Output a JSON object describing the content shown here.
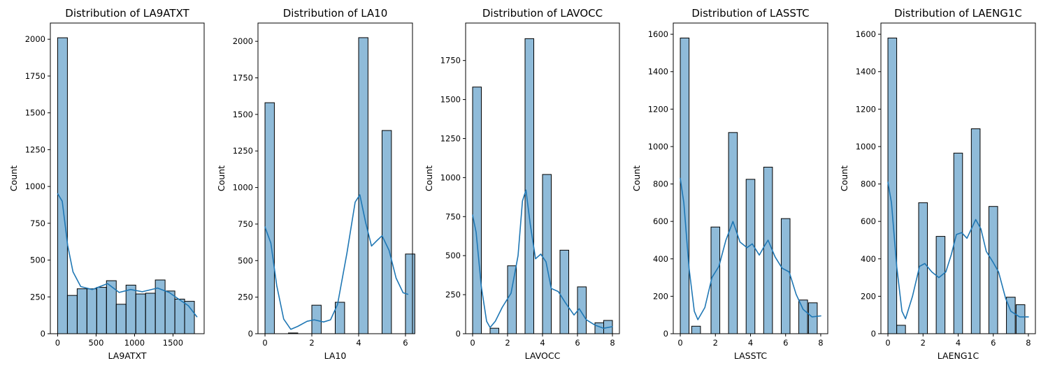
{
  "chart_data": [
    {
      "type": "bar",
      "title": "Distribution of LA9ATXT",
      "xlabel": "LA9ATXT",
      "ylabel": "Count",
      "xlim": [
        -95,
        1905
      ],
      "ylim": [
        0,
        2110
      ],
      "xticks": [
        0,
        500,
        1000,
        1500
      ],
      "yticks": [
        0,
        250,
        500,
        750,
        1000,
        1250,
        1500,
        1750,
        2000
      ],
      "bins": [
        {
          "x0": 0,
          "x1": 127,
          "count": 2010
        },
        {
          "x0": 127,
          "x1": 254,
          "count": 260
        },
        {
          "x0": 254,
          "x1": 381,
          "count": 305
        },
        {
          "x0": 381,
          "x1": 508,
          "count": 305
        },
        {
          "x0": 508,
          "x1": 635,
          "count": 315
        },
        {
          "x0": 635,
          "x1": 762,
          "count": 360
        },
        {
          "x0": 762,
          "x1": 889,
          "count": 200
        },
        {
          "x0": 889,
          "x1": 1016,
          "count": 330
        },
        {
          "x0": 1016,
          "x1": 1143,
          "count": 270
        },
        {
          "x0": 1143,
          "x1": 1270,
          "count": 275
        },
        {
          "x0": 1270,
          "x1": 1397,
          "count": 365
        },
        {
          "x0": 1397,
          "x1": 1524,
          "count": 290
        },
        {
          "x0": 1524,
          "x1": 1651,
          "count": 235
        },
        {
          "x0": 1651,
          "x1": 1778,
          "count": 220
        }
      ],
      "kde": [
        [
          0,
          950
        ],
        [
          60,
          900
        ],
        [
          130,
          600
        ],
        [
          200,
          420
        ],
        [
          300,
          320
        ],
        [
          450,
          300
        ],
        [
          650,
          340
        ],
        [
          800,
          280
        ],
        [
          950,
          300
        ],
        [
          1100,
          285
        ],
        [
          1300,
          310
        ],
        [
          1450,
          280
        ],
        [
          1600,
          225
        ],
        [
          1700,
          190
        ],
        [
          1810,
          115
        ]
      ]
    },
    {
      "type": "bar",
      "title": "Distribution of LA10",
      "xlabel": "LA10",
      "ylabel": "Count",
      "xlim": [
        -0.3,
        6.3
      ],
      "ylim": [
        0,
        2125
      ],
      "xticks": [
        0,
        2,
        4,
        6
      ],
      "yticks": [
        0,
        250,
        500,
        750,
        1000,
        1250,
        1500,
        1750,
        2000
      ],
      "bins": [
        {
          "x0": 0,
          "x1": 0.4,
          "count": 1580
        },
        {
          "x0": 1,
          "x1": 1.4,
          "count": 5
        },
        {
          "x0": 2,
          "x1": 2.4,
          "count": 195
        },
        {
          "x0": 3,
          "x1": 3.4,
          "count": 215
        },
        {
          "x0": 4,
          "x1": 4.4,
          "count": 2025
        },
        {
          "x0": 5,
          "x1": 5.4,
          "count": 1390
        },
        {
          "x0": 6,
          "x1": 6.4,
          "count": 545
        }
      ],
      "kde": [
        [
          0,
          730
        ],
        [
          0.25,
          620
        ],
        [
          0.5,
          330
        ],
        [
          0.8,
          100
        ],
        [
          1.1,
          30
        ],
        [
          1.4,
          50
        ],
        [
          1.8,
          85
        ],
        [
          2.1,
          95
        ],
        [
          2.5,
          80
        ],
        [
          2.8,
          95
        ],
        [
          3.1,
          200
        ],
        [
          3.5,
          550
        ],
        [
          3.85,
          900
        ],
        [
          4.05,
          950
        ],
        [
          4.3,
          760
        ],
        [
          4.55,
          600
        ],
        [
          4.8,
          640
        ],
        [
          5.0,
          670
        ],
        [
          5.3,
          570
        ],
        [
          5.6,
          380
        ],
        [
          5.9,
          280
        ],
        [
          6.1,
          270
        ]
      ]
    },
    {
      "type": "bar",
      "title": "Distribution of LAVOCC",
      "xlabel": "LAVOCC",
      "ylabel": "Count",
      "xlim": [
        -0.4,
        8.4
      ],
      "ylim": [
        0,
        1990
      ],
      "xticks": [
        0,
        2,
        4,
        6,
        8
      ],
      "yticks": [
        0,
        250,
        500,
        750,
        1000,
        1250,
        1500,
        1750
      ],
      "bins": [
        {
          "x0": 0,
          "x1": 0.5,
          "count": 1580
        },
        {
          "x0": 1,
          "x1": 1.5,
          "count": 35
        },
        {
          "x0": 2,
          "x1": 2.5,
          "count": 435
        },
        {
          "x0": 3,
          "x1": 3.5,
          "count": 1890
        },
        {
          "x0": 4,
          "x1": 4.5,
          "count": 1020
        },
        {
          "x0": 5,
          "x1": 5.5,
          "count": 535
        },
        {
          "x0": 6,
          "x1": 6.5,
          "count": 300
        },
        {
          "x0": 7,
          "x1": 7.5,
          "count": 70
        },
        {
          "x0": 7.5,
          "x1": 8,
          "count": 85
        }
      ],
      "kde": [
        [
          0,
          760
        ],
        [
          0.2,
          650
        ],
        [
          0.5,
          300
        ],
        [
          0.8,
          80
        ],
        [
          1.0,
          40
        ],
        [
          1.3,
          80
        ],
        [
          1.7,
          170
        ],
        [
          2.2,
          260
        ],
        [
          2.6,
          500
        ],
        [
          2.85,
          850
        ],
        [
          3.05,
          920
        ],
        [
          3.3,
          700
        ],
        [
          3.6,
          480
        ],
        [
          3.9,
          510
        ],
        [
          4.2,
          460
        ],
        [
          4.5,
          290
        ],
        [
          4.9,
          270
        ],
        [
          5.3,
          200
        ],
        [
          5.8,
          120
        ],
        [
          6.1,
          160
        ],
        [
          6.5,
          90
        ],
        [
          7.0,
          55
        ],
        [
          7.5,
          35
        ],
        [
          8.0,
          45
        ]
      ]
    },
    {
      "type": "bar",
      "title": "Distribution of LASSTC",
      "xlabel": "LASSTC",
      "ylabel": "Count",
      "xlim": [
        -0.4,
        8.4
      ],
      "ylim": [
        0,
        1660
      ],
      "xticks": [
        0,
        2,
        4,
        6,
        8
      ],
      "yticks": [
        0,
        200,
        400,
        600,
        800,
        1000,
        1200,
        1400,
        1600
      ],
      "bins": [
        {
          "x0": 0,
          "x1": 0.5,
          "count": 1580
        },
        {
          "x0": 0.65,
          "x1": 1.15,
          "count": 40
        },
        {
          "x0": 1.75,
          "x1": 2.25,
          "count": 570
        },
        {
          "x0": 2.75,
          "x1": 3.25,
          "count": 1075
        },
        {
          "x0": 3.75,
          "x1": 4.25,
          "count": 825
        },
        {
          "x0": 4.75,
          "x1": 5.25,
          "count": 890
        },
        {
          "x0": 5.75,
          "x1": 6.25,
          "count": 615
        },
        {
          "x0": 6.75,
          "x1": 7.25,
          "count": 180
        },
        {
          "x0": 7.3,
          "x1": 7.8,
          "count": 165
        }
      ],
      "kde": [
        [
          0,
          830
        ],
        [
          0.2,
          700
        ],
        [
          0.5,
          350
        ],
        [
          0.8,
          120
        ],
        [
          1.0,
          75
        ],
        [
          1.4,
          140
        ],
        [
          1.8,
          300
        ],
        [
          2.2,
          360
        ],
        [
          2.6,
          500
        ],
        [
          3.0,
          600
        ],
        [
          3.4,
          490
        ],
        [
          3.8,
          460
        ],
        [
          4.1,
          480
        ],
        [
          4.5,
          420
        ],
        [
          4.8,
          470
        ],
        [
          5.0,
          500
        ],
        [
          5.4,
          410
        ],
        [
          5.8,
          350
        ],
        [
          6.2,
          330
        ],
        [
          6.6,
          210
        ],
        [
          7.0,
          130
        ],
        [
          7.5,
          90
        ],
        [
          8.0,
          95
        ]
      ]
    },
    {
      "type": "bar",
      "title": "Distribution of LAENG1C",
      "xlabel": "LAENG1C",
      "ylabel": "Count",
      "xlim": [
        -0.4,
        8.4
      ],
      "ylim": [
        0,
        1660
      ],
      "xticks": [
        0,
        2,
        4,
        6,
        8
      ],
      "yticks": [
        0,
        200,
        400,
        600,
        800,
        1000,
        1200,
        1400,
        1600
      ],
      "bins": [
        {
          "x0": 0,
          "x1": 0.5,
          "count": 1580
        },
        {
          "x0": 0.5,
          "x1": 1.0,
          "count": 45
        },
        {
          "x0": 1.75,
          "x1": 2.25,
          "count": 700
        },
        {
          "x0": 2.75,
          "x1": 3.25,
          "count": 520
        },
        {
          "x0": 3.75,
          "x1": 4.25,
          "count": 965
        },
        {
          "x0": 4.75,
          "x1": 5.25,
          "count": 1095
        },
        {
          "x0": 5.75,
          "x1": 6.25,
          "count": 680
        },
        {
          "x0": 6.75,
          "x1": 7.25,
          "count": 195
        },
        {
          "x0": 7.3,
          "x1": 7.8,
          "count": 155
        }
      ],
      "kde": [
        [
          0,
          810
        ],
        [
          0.2,
          700
        ],
        [
          0.5,
          360
        ],
        [
          0.8,
          120
        ],
        [
          1.0,
          80
        ],
        [
          1.4,
          200
        ],
        [
          1.8,
          360
        ],
        [
          2.1,
          375
        ],
        [
          2.5,
          330
        ],
        [
          2.9,
          300
        ],
        [
          3.3,
          330
        ],
        [
          3.6,
          420
        ],
        [
          3.9,
          530
        ],
        [
          4.2,
          540
        ],
        [
          4.5,
          510
        ],
        [
          4.8,
          570
        ],
        [
          5.0,
          610
        ],
        [
          5.3,
          560
        ],
        [
          5.6,
          440
        ],
        [
          6.0,
          380
        ],
        [
          6.3,
          330
        ],
        [
          6.7,
          190
        ],
        [
          7.0,
          120
        ],
        [
          7.5,
          90
        ],
        [
          8.0,
          90
        ]
      ]
    }
  ],
  "colors": {
    "bar_fill": "#1f77b4",
    "bar_fill_opacity": 0.5,
    "bar_edge": "#000000",
    "kde_line": "#1f77b4",
    "axis": "#000000"
  }
}
